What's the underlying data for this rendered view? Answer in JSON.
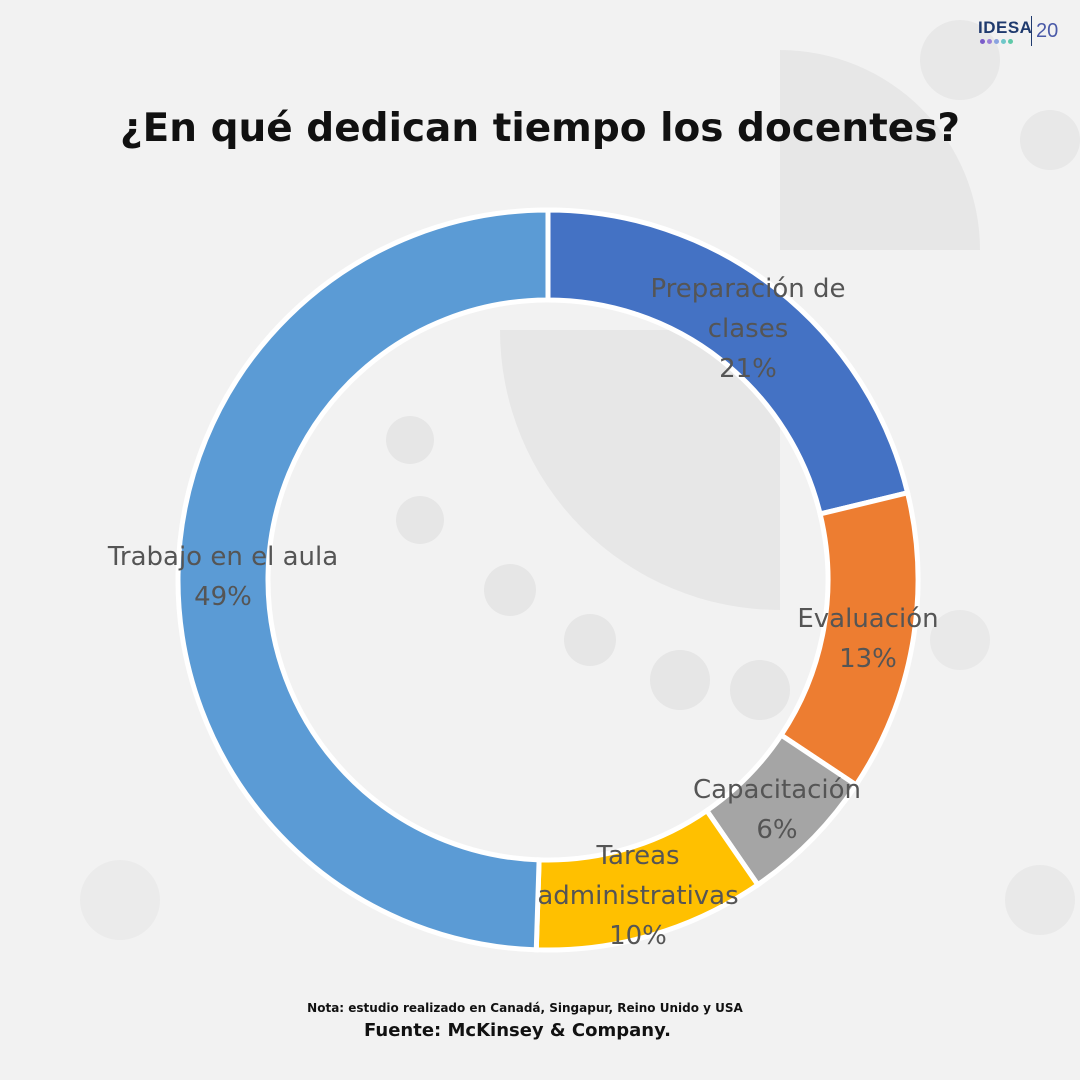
{
  "logo": {
    "text": "IDESA",
    "number": "20",
    "dot_colors": [
      "#7a5cc9",
      "#9b7fd8",
      "#8aa3e0",
      "#6fc7c9",
      "#5fc9a8"
    ]
  },
  "title": "¿En qué dedican tiempo los docentes?",
  "chart_data": {
    "type": "pie",
    "donut": true,
    "title": "¿En qué dedican tiempo los docentes?",
    "slices": [
      {
        "label": "Preparación de clases",
        "label_lines": [
          "Preparación de",
          "clases"
        ],
        "value": 21,
        "value_label": "21%",
        "color": "#4472c4"
      },
      {
        "label": "Evaluación",
        "label_lines": [
          "Evaluación"
        ],
        "value": 13,
        "value_label": "13%",
        "color": "#ed7d31"
      },
      {
        "label": "Capacitación",
        "label_lines": [
          "Capacitación"
        ],
        "value": 6,
        "value_label": "6%",
        "color": "#a5a5a5"
      },
      {
        "label": "Tareas administrativas",
        "label_lines": [
          "Tareas",
          "administrativas"
        ],
        "value": 10,
        "value_label": "10%",
        "color": "#ffc000"
      },
      {
        "label": "Trabajo en el aula",
        "label_lines": [
          "Trabajo en el aula"
        ],
        "value": 49,
        "value_label": "49%",
        "color": "#5b9bd5"
      }
    ],
    "legend": "none"
  },
  "footer": {
    "note": "Nota: estudio realizado en Canadá, Singapur, Reino Unido y USA",
    "source": "Fuente: McKinsey & Company."
  }
}
